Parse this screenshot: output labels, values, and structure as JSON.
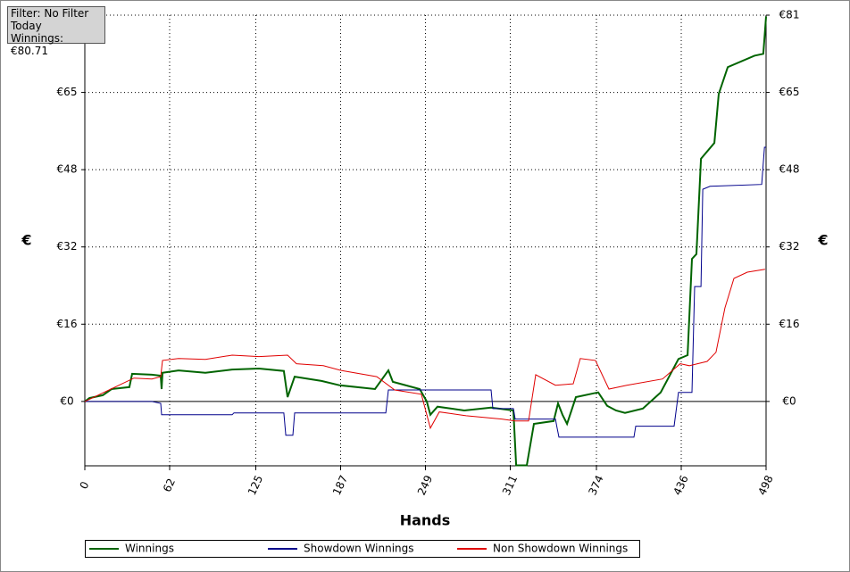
{
  "chart_data": {
    "type": "line",
    "info": [
      "Filter: No Filter",
      "Today",
      "Winnings: €80.71"
    ],
    "xlabel": "Hands",
    "ylabel": "€",
    "y2label": "€",
    "xlim": [
      0,
      498
    ],
    "xticks": [
      0,
      62,
      125,
      187,
      249,
      311,
      374,
      436,
      498
    ],
    "ylim": [
      -13.5,
      81
    ],
    "yticks": [
      {
        "value": 0,
        "label": "€0"
      },
      {
        "value": 16.2,
        "label": "€16"
      },
      {
        "value": 32.4,
        "label": "€32"
      },
      {
        "value": 48.6,
        "label": "€48"
      },
      {
        "value": 64.8,
        "label": "€65"
      },
      {
        "value": 81,
        "label": "€81"
      }
    ],
    "grid": true,
    "series": [
      {
        "name": "Winnings",
        "color": "#006400",
        "x": [
          0,
          3.3,
          13.1,
          19.6,
          32.6,
          34.6,
          49,
          55.5,
          56.1,
          56.8,
          68.5,
          88.1,
          107.7,
          127.3,
          145.5,
          148.2,
          153.4,
          173,
          186,
          212.1,
          221.9,
          225.2,
          244.8,
          250,
          252.6,
          257.8,
          277.4,
          297,
          313.3,
          315.3,
          323.1,
          328.3,
          342.7,
          345.9,
          349.2,
          352.5,
          359,
          375.3,
          381.8,
          388.3,
          394.9,
          407.9,
          421,
          434,
          440.6,
          443.8,
          447.1,
          450.4,
          460.2,
          463.4,
          470,
          489.5,
          496,
          498
        ],
        "values": [
          0,
          0.7,
          1.3,
          2.6,
          3.0,
          5.8,
          5.6,
          5.4,
          2.6,
          6.0,
          6.5,
          6.0,
          6.7,
          6.9,
          6.4,
          0.9,
          5.2,
          4.3,
          3.4,
          2.6,
          6.5,
          4.1,
          2.6,
          0,
          -2.8,
          -1.1,
          -1.9,
          -1.3,
          -1.9,
          -13.4,
          -13.4,
          -4.7,
          -4.1,
          -0.4,
          -2.8,
          -4.7,
          0.9,
          1.9,
          -0.9,
          -1.9,
          -2.4,
          -1.5,
          1.9,
          8.9,
          9.7,
          29.9,
          30.9,
          50.9,
          54.2,
          64.5,
          70.1,
          72.5,
          72.9,
          80.71
        ]
      },
      {
        "name": "Showdown Winnings",
        "color": "#00008b",
        "x": [
          0,
          49,
          55.5,
          56.1,
          107.7,
          109,
          145.5,
          146.9,
          152.1,
          153.4,
          220,
          221.9,
          297,
          298.3,
          313.3,
          314.6,
          344,
          345.3,
          346.6,
          401.4,
          402.7,
          430.8,
          434,
          443.8,
          445.8,
          450.4,
          451.7,
          457,
          494.8,
          496.8,
          498
        ],
        "values": [
          0,
          0,
          -0.4,
          -2.8,
          -2.8,
          -2.4,
          -2.4,
          -7.1,
          -7.1,
          -2.4,
          -2.4,
          2.4,
          2.4,
          -1.5,
          -1.5,
          -3.7,
          -3.7,
          -5.6,
          -7.5,
          -7.5,
          -5.2,
          -5.2,
          1.9,
          1.9,
          24.1,
          24.1,
          44.5,
          45.1,
          45.5,
          53.3,
          53.3
        ]
      },
      {
        "name": "Non Showdown Winnings",
        "color": "#e00000",
        "x": [
          0,
          35.9,
          49,
          55.5,
          56.8,
          68.5,
          88.1,
          107.7,
          127.3,
          148.2,
          154.7,
          174.3,
          187.3,
          213.4,
          226.5,
          246,
          252.6,
          259.1,
          278.7,
          304.8,
          314.6,
          324.4,
          329.6,
          344,
          357,
          362.2,
          373.3,
          383.1,
          396.2,
          422.3,
          435.3,
          441.9,
          454.9,
          461.4,
          467.9,
          474.5,
          484.3,
          497.3
        ],
        "values": [
          0,
          4.9,
          4.7,
          5.2,
          8.6,
          9.0,
          8.8,
          9.7,
          9.4,
          9.7,
          7.9,
          7.5,
          6.5,
          5.2,
          2.4,
          1.5,
          -5.6,
          -2.2,
          -3.0,
          -3.7,
          -4.1,
          -4.1,
          5.6,
          3.4,
          3.7,
          9.0,
          8.6,
          2.6,
          3.4,
          4.7,
          7.9,
          7.5,
          8.4,
          10.3,
          19.6,
          25.8,
          27.1,
          27.7
        ]
      }
    ]
  }
}
